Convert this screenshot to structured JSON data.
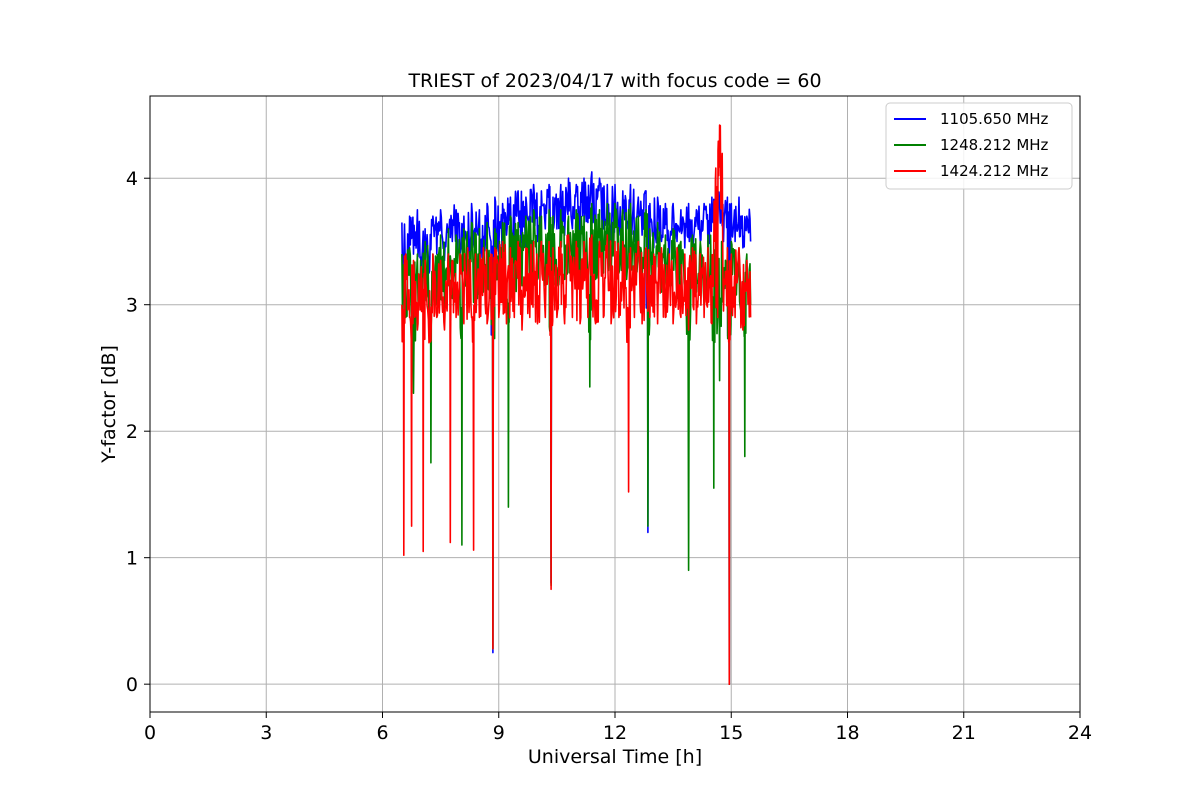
{
  "chart_data": {
    "type": "line",
    "title": "TRIEST of 2023/04/17 with focus code = 60",
    "xlabel": "Universal Time [h]",
    "ylabel": "Y-factor [dB]",
    "xlim": [
      0,
      24
    ],
    "ylim": [
      -0.22,
      4.65
    ],
    "xticks": [
      0,
      3,
      6,
      9,
      12,
      15,
      18,
      21,
      24
    ],
    "yticks": [
      0,
      1,
      2,
      3,
      4
    ],
    "grid": true,
    "legend_position": "top-right",
    "series": [
      {
        "name": "1105.650 MHz",
        "color": "#0000ff",
        "x": [
          6.5,
          6.6,
          6.7,
          6.8,
          6.9,
          7.0,
          7.1,
          7.2,
          7.3,
          7.4,
          7.5,
          7.6,
          7.7,
          7.8,
          7.9,
          8.0,
          8.1,
          8.2,
          8.3,
          8.4,
          8.5,
          8.6,
          8.7,
          8.8,
          8.85,
          8.9,
          9.0,
          9.1,
          9.2,
          9.3,
          9.4,
          9.5,
          9.6,
          9.7,
          9.8,
          9.9,
          10.0,
          10.1,
          10.2,
          10.3,
          10.35,
          10.4,
          10.5,
          10.6,
          10.7,
          10.8,
          10.9,
          11.0,
          11.1,
          11.2,
          11.3,
          11.4,
          11.5,
          11.6,
          11.7,
          11.8,
          11.9,
          12.0,
          12.1,
          12.2,
          12.3,
          12.4,
          12.5,
          12.6,
          12.7,
          12.8,
          12.85,
          12.9,
          13.0,
          13.1,
          13.2,
          13.3,
          13.4,
          13.5,
          13.6,
          13.7,
          13.8,
          13.9,
          14.0,
          14.1,
          14.2,
          14.3,
          14.4,
          14.5,
          14.6,
          14.7,
          14.8,
          14.9,
          14.95,
          15.0,
          15.1,
          15.2,
          15.3,
          15.4,
          15.5
        ],
        "y": [
          3.65,
          3.2,
          3.7,
          3.4,
          3.75,
          3.3,
          3.6,
          3.25,
          3.7,
          3.4,
          3.75,
          3.35,
          3.6,
          3.5,
          3.75,
          3.4,
          3.7,
          3.3,
          3.8,
          3.45,
          3.75,
          3.35,
          3.8,
          3.5,
          0.25,
          3.85,
          3.4,
          3.8,
          3.55,
          3.85,
          3.5,
          3.9,
          3.45,
          3.85,
          3.6,
          3.95,
          3.5,
          3.9,
          3.6,
          3.95,
          0.8,
          3.85,
          3.6,
          3.95,
          3.55,
          4.0,
          3.6,
          3.95,
          3.5,
          4.0,
          3.65,
          4.05,
          3.55,
          4.0,
          3.6,
          3.95,
          3.5,
          3.95,
          3.55,
          3.9,
          3.6,
          3.95,
          3.5,
          3.85,
          3.55,
          3.9,
          1.2,
          3.8,
          3.45,
          3.85,
          3.5,
          3.8,
          3.4,
          3.8,
          3.5,
          3.75,
          3.45,
          3.8,
          3.4,
          3.75,
          3.5,
          3.8,
          3.45,
          3.85,
          3.6,
          3.8,
          3.5,
          3.85,
          0.0,
          3.8,
          3.5,
          3.85,
          3.45,
          3.7,
          3.5
        ]
      },
      {
        "name": "1248.212 MHz",
        "color": "#008000",
        "x": [
          6.5,
          6.6,
          6.7,
          6.8,
          6.9,
          7.0,
          7.1,
          7.2,
          7.25,
          7.3,
          7.4,
          7.5,
          7.6,
          7.7,
          7.8,
          7.9,
          8.0,
          8.05,
          8.1,
          8.2,
          8.3,
          8.4,
          8.5,
          8.6,
          8.7,
          8.8,
          8.85,
          8.9,
          9.0,
          9.1,
          9.2,
          9.25,
          9.3,
          9.4,
          9.5,
          9.6,
          9.7,
          9.8,
          9.9,
          10.0,
          10.1,
          10.2,
          10.3,
          10.35,
          10.4,
          10.5,
          10.6,
          10.7,
          10.8,
          10.9,
          11.0,
          11.1,
          11.2,
          11.3,
          11.35,
          11.4,
          11.5,
          11.6,
          11.7,
          11.8,
          11.9,
          12.0,
          12.1,
          12.2,
          12.3,
          12.4,
          12.5,
          12.6,
          12.7,
          12.8,
          12.85,
          12.9,
          13.0,
          13.1,
          13.2,
          13.3,
          13.4,
          13.5,
          13.6,
          13.7,
          13.8,
          13.9,
          14.0,
          14.1,
          14.2,
          14.3,
          14.4,
          14.5,
          14.55,
          14.6,
          14.7,
          14.75,
          14.8,
          14.9,
          14.95,
          15.0,
          15.1,
          15.2,
          15.3,
          15.35,
          15.4,
          15.5
        ],
        "y": [
          3.4,
          2.9,
          3.45,
          2.3,
          3.4,
          3.0,
          3.5,
          2.9,
          1.75,
          3.4,
          3.0,
          3.55,
          2.95,
          3.6,
          3.05,
          3.55,
          3.1,
          1.1,
          3.6,
          3.1,
          3.65,
          3.0,
          3.6,
          3.1,
          3.65,
          3.05,
          0.28,
          3.6,
          3.1,
          3.65,
          3.05,
          1.4,
          3.7,
          3.1,
          3.65,
          3.15,
          3.7,
          3.1,
          3.75,
          3.2,
          3.7,
          3.15,
          3.75,
          0.78,
          3.7,
          3.15,
          3.75,
          3.2,
          3.7,
          3.25,
          3.75,
          3.2,
          3.7,
          3.25,
          2.35,
          3.8,
          3.2,
          3.75,
          3.25,
          3.8,
          3.2,
          3.8,
          3.25,
          3.75,
          3.2,
          3.8,
          3.25,
          3.7,
          3.2,
          3.75,
          1.25,
          3.6,
          3.15,
          3.65,
          3.1,
          3.55,
          3.15,
          3.6,
          3.05,
          3.5,
          3.1,
          0.9,
          3.55,
          3.1,
          3.5,
          3.0,
          3.55,
          3.1,
          1.55,
          3.5,
          2.4,
          3.5,
          3.0,
          3.45,
          0.0,
          3.5,
          3.05,
          3.45,
          2.9,
          1.8,
          3.4,
          3.0
        ]
      },
      {
        "name": "1424.212 MHz",
        "color": "#ff0000",
        "x": [
          6.5,
          6.55,
          6.6,
          6.7,
          6.75,
          6.8,
          6.9,
          7.0,
          7.05,
          7.1,
          7.2,
          7.3,
          7.4,
          7.5,
          7.6,
          7.7,
          7.75,
          7.8,
          7.9,
          8.0,
          8.1,
          8.2,
          8.3,
          8.35,
          8.4,
          8.5,
          8.6,
          8.7,
          8.8,
          8.85,
          8.9,
          9.0,
          9.1,
          9.2,
          9.3,
          9.4,
          9.5,
          9.6,
          9.7,
          9.8,
          9.9,
          10.0,
          10.1,
          10.2,
          10.3,
          10.35,
          10.4,
          10.5,
          10.6,
          10.7,
          10.8,
          10.9,
          11.0,
          11.1,
          11.2,
          11.3,
          11.4,
          11.5,
          11.6,
          11.7,
          11.8,
          11.9,
          12.0,
          12.1,
          12.2,
          12.3,
          12.35,
          12.4,
          12.5,
          12.6,
          12.7,
          12.8,
          12.9,
          13.0,
          13.1,
          13.2,
          13.3,
          13.4,
          13.5,
          13.6,
          13.7,
          13.8,
          13.9,
          14.0,
          14.1,
          14.2,
          14.3,
          14.4,
          14.5,
          14.55,
          14.6,
          14.65,
          14.7,
          14.8,
          14.9,
          14.95,
          15.0,
          15.1,
          15.2,
          15.3,
          15.4,
          15.5
        ],
        "y": [
          3.0,
          1.02,
          3.4,
          2.9,
          1.25,
          3.35,
          2.8,
          3.3,
          1.05,
          3.35,
          2.7,
          3.4,
          2.9,
          3.35,
          2.8,
          3.4,
          1.12,
          3.35,
          2.9,
          3.4,
          2.85,
          3.45,
          2.9,
          1.06,
          3.4,
          2.9,
          3.45,
          2.85,
          3.4,
          0.28,
          3.45,
          2.9,
          3.5,
          2.85,
          3.45,
          2.9,
          3.5,
          2.8,
          3.45,
          2.9,
          3.5,
          2.85,
          3.5,
          2.9,
          3.5,
          0.75,
          3.45,
          2.9,
          3.5,
          2.85,
          3.55,
          2.9,
          3.5,
          2.85,
          3.5,
          2.9,
          3.55,
          2.85,
          3.5,
          2.9,
          3.55,
          2.85,
          3.5,
          2.9,
          3.5,
          2.85,
          1.52,
          3.45,
          2.9,
          3.5,
          2.85,
          3.45,
          2.9,
          3.4,
          2.85,
          3.45,
          2.9,
          3.4,
          2.85,
          3.45,
          2.9,
          3.4,
          2.8,
          3.45,
          2.85,
          3.4,
          2.9,
          3.45,
          2.85,
          3.5,
          4.08,
          2.9,
          4.42,
          2.95,
          3.45,
          0.0,
          3.4,
          2.9,
          3.45,
          2.8,
          3.35,
          2.9
        ]
      }
    ]
  }
}
